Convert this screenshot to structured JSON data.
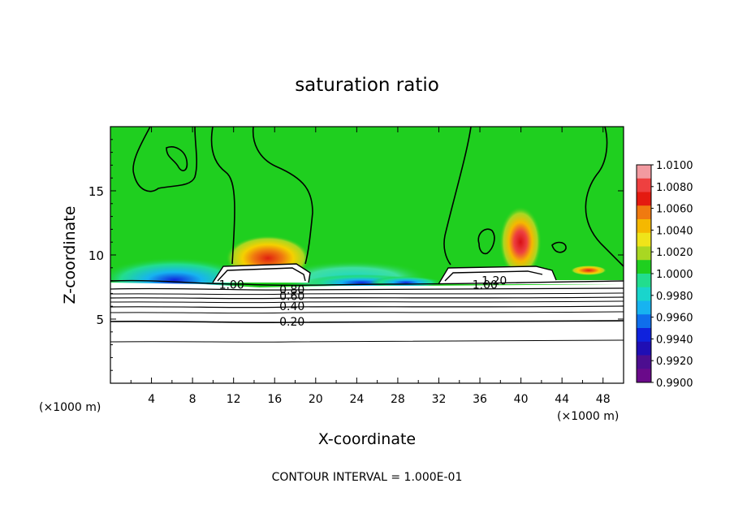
{
  "chart_data": {
    "type": "heatmap",
    "title": "saturation ratio",
    "xlabel": "X-coordinate",
    "ylabel": "Z-coordinate",
    "x_unit_label_left": "(×1000 m)",
    "x_unit_label_right": "(×1000 m)",
    "xlim": [
      0,
      50
    ],
    "ylim": [
      0,
      20
    ],
    "x_ticks": [
      4,
      8,
      12,
      16,
      20,
      24,
      28,
      32,
      36,
      40,
      44,
      48
    ],
    "y_ticks": [
      5,
      10,
      15
    ],
    "footer": "CONTOUR INTERVAL = 1.000E-01",
    "colorbar": {
      "min": 0.99,
      "max": 1.01,
      "labels": [
        "1.0100",
        "1.0080",
        "1.0060",
        "1.0040",
        "1.0020",
        "1.0000",
        "0.9980",
        "0.9960",
        "0.9940",
        "0.9920",
        "0.9900"
      ],
      "colors": [
        "#f29aa0",
        "#ee4040",
        "#e41a10",
        "#f07a10",
        "#f5b800",
        "#efe41a",
        "#a9d722",
        "#1fcf1f",
        "#22dd8e",
        "#19d5cc",
        "#17b3f0",
        "#0f6eec",
        "#0f22dd",
        "#1f0eb4",
        "#4c0e90",
        "#6a0a8a"
      ]
    },
    "contour_labels": [
      {
        "text": "1.00",
        "x": 11.8,
        "y": 7.7
      },
      {
        "text": "0.80",
        "x": 17.7,
        "y": 7.3
      },
      {
        "text": "0.60",
        "x": 17.7,
        "y": 6.8
      },
      {
        "text": "0.40",
        "x": 17.7,
        "y": 6.0
      },
      {
        "text": "0.20",
        "x": 17.7,
        "y": 4.8
      },
      {
        "text": "1.00",
        "x": 36.5,
        "y": 7.7
      },
      {
        "text": "1.20",
        "x": 37.4,
        "y": 8.0
      }
    ],
    "features": [
      {
        "name": "supersaturated maximum",
        "x": 15,
        "z": 10.5,
        "value": 1.006
      },
      {
        "name": "supersaturated maximum",
        "x": 40,
        "z": 11.0,
        "value": 1.008
      },
      {
        "name": "subsaturated minimum",
        "x": 6,
        "z": 8.2,
        "value": 0.992
      },
      {
        "name": "subsaturated minimum",
        "x": 22,
        "z": 8.0,
        "value": 0.994
      },
      {
        "name": "subsaturated minimum",
        "x": 29,
        "z": 8.0,
        "value": 0.994
      }
    ]
  }
}
